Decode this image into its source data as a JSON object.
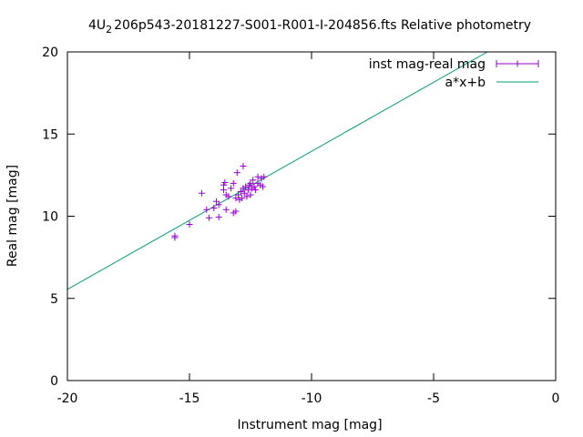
{
  "chart_data": {
    "type": "scatter",
    "title_main": "4U",
    "title_sub": "2",
    "title_rest": "206p543-20181227-S001-R001-I-204856.fts Relative photometry",
    "xlabel": "Instrument mag [mag]",
    "ylabel": "Real mag [mag]",
    "xlim": [
      -20,
      0
    ],
    "ylim": [
      0,
      20
    ],
    "xticks": [
      -20,
      -15,
      -10,
      -5,
      0
    ],
    "yticks": [
      0,
      5,
      10,
      15,
      20
    ],
    "xtick_labels": [
      "-20",
      "-15",
      "-10",
      "-5",
      "0"
    ],
    "ytick_labels": [
      "0",
      "5",
      "10",
      "15",
      "20"
    ],
    "grid": false,
    "legend_position": "top-right",
    "series": [
      {
        "name": "inst mag-real mag",
        "kind": "points",
        "color": "#9400d3",
        "points": [
          [
            -15.6,
            8.8
          ],
          [
            -15.6,
            8.7
          ],
          [
            -15.0,
            9.5
          ],
          [
            -14.5,
            11.4
          ],
          [
            -14.3,
            10.4
          ],
          [
            -14.2,
            9.9
          ],
          [
            -14.0,
            10.5
          ],
          [
            -13.9,
            10.9
          ],
          [
            -13.8,
            10.7
          ],
          [
            -13.8,
            9.95
          ],
          [
            -13.6,
            11.6
          ],
          [
            -13.6,
            11.9
          ],
          [
            -13.55,
            12.05
          ],
          [
            -13.5,
            10.4
          ],
          [
            -13.5,
            11.3
          ],
          [
            -13.4,
            11.2
          ],
          [
            -13.3,
            11.7
          ],
          [
            -13.2,
            12.0
          ],
          [
            -13.2,
            10.2
          ],
          [
            -13.1,
            11.1
          ],
          [
            -13.1,
            10.3
          ],
          [
            -13.05,
            12.65
          ],
          [
            -13.0,
            11.3
          ],
          [
            -12.95,
            11.0
          ],
          [
            -12.9,
            11.5
          ],
          [
            -12.85,
            11.1
          ],
          [
            -12.8,
            11.7
          ],
          [
            -12.8,
            13.05
          ],
          [
            -12.75,
            11.4
          ],
          [
            -12.7,
            11.8
          ],
          [
            -12.65,
            11.2
          ],
          [
            -12.6,
            11.6
          ],
          [
            -12.55,
            11.9
          ],
          [
            -12.5,
            12.0
          ],
          [
            -12.5,
            11.3
          ],
          [
            -12.45,
            11.7
          ],
          [
            -12.4,
            12.2
          ],
          [
            -12.35,
            11.8
          ],
          [
            -12.3,
            11.6
          ],
          [
            -12.2,
            12.0
          ],
          [
            -12.2,
            12.4
          ],
          [
            -12.1,
            11.9
          ],
          [
            -12.05,
            12.3
          ],
          [
            -12.0,
            11.8
          ],
          [
            -11.95,
            12.4
          ]
        ]
      },
      {
        "name": "a*x+b",
        "kind": "line",
        "color": "#009e73",
        "x": [
          -20,
          -2.8
        ],
        "y": [
          5.55,
          20
        ]
      }
    ]
  }
}
